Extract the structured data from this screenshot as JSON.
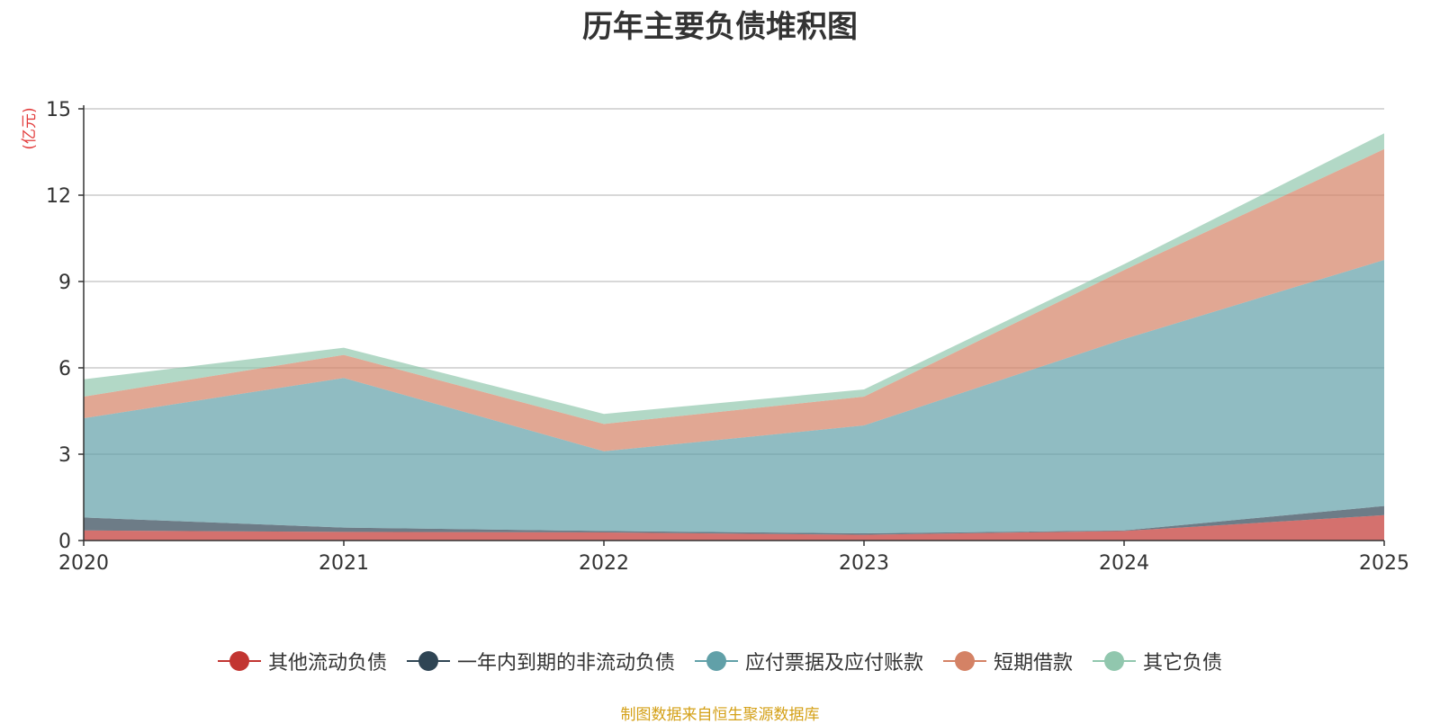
{
  "chart_data": {
    "type": "area",
    "stacked": true,
    "title": "历年主要负债堆积图",
    "y_unit": "(亿元)",
    "x": [
      "2020",
      "2021",
      "2022",
      "2023",
      "2024",
      "2025"
    ],
    "y_ticks": [
      "0",
      "3",
      "6",
      "9",
      "12",
      "15"
    ],
    "ylim": [
      0,
      15
    ],
    "grid": true,
    "legend_position": "bottom",
    "series": [
      {
        "name": "其他流动负债",
        "color": "#c23531",
        "values": [
          0.35,
          0.3,
          0.28,
          0.2,
          0.33,
          0.88
        ]
      },
      {
        "name": "一年内到期的非流动负债",
        "color": "#2f4554",
        "values": [
          0.45,
          0.15,
          0.05,
          0.05,
          0.02,
          0.32
        ]
      },
      {
        "name": "应付票据及应付账款",
        "color": "#61a0a8",
        "values": [
          3.45,
          5.2,
          2.77,
          3.75,
          6.65,
          8.55
        ]
      },
      {
        "name": "短期借款",
        "color": "#d48265",
        "values": [
          0.75,
          0.8,
          0.95,
          1.0,
          2.4,
          3.85
        ]
      },
      {
        "name": "其它负债",
        "color": "#91c7ae",
        "values": [
          0.6,
          0.25,
          0.35,
          0.25,
          0.2,
          0.55
        ]
      }
    ]
  },
  "footer": {
    "source": "制图数据来自恒生聚源数据库"
  }
}
